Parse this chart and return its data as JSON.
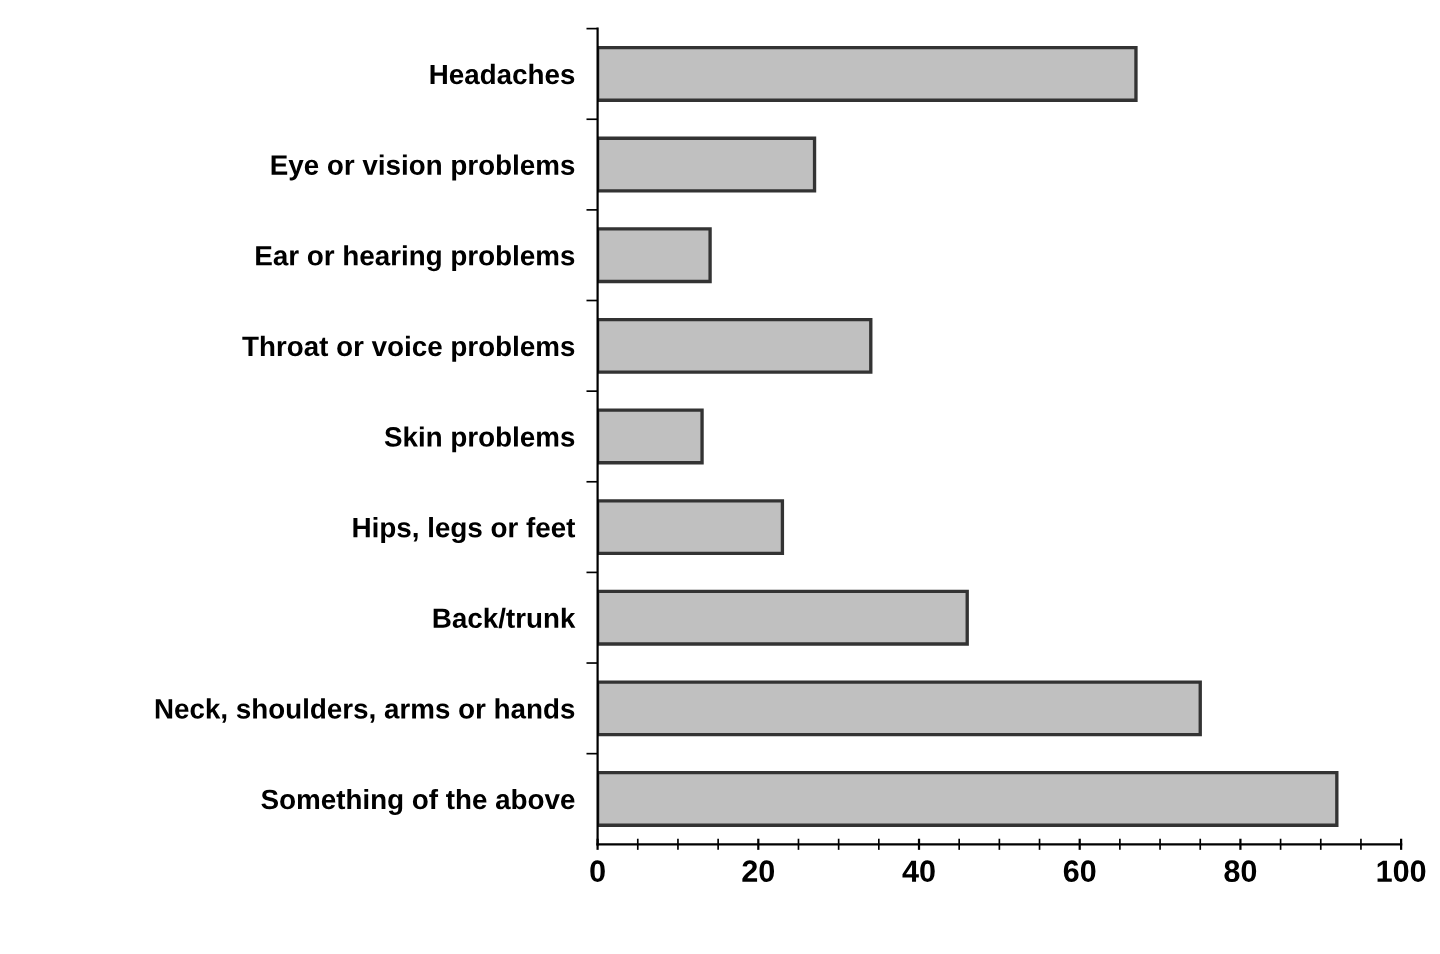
{
  "chart_data": {
    "type": "bar",
    "orientation": "horizontal",
    "categories": [
      "Headaches",
      "Eye or vision problems",
      "Ear or hearing problems",
      "Throat or voice problems",
      "Skin problems",
      "Hips, legs or feet",
      "Back/trunk",
      "Neck, shoulders, arms or hands",
      "Something of the above"
    ],
    "values": [
      67,
      27,
      14,
      34,
      13,
      23,
      46,
      75,
      92
    ],
    "color": "#c0c0c0",
    "xlim": [
      0,
      100
    ],
    "xticks": [
      0,
      20,
      40,
      60,
      80,
      100
    ],
    "grid": false,
    "legend": false
  }
}
